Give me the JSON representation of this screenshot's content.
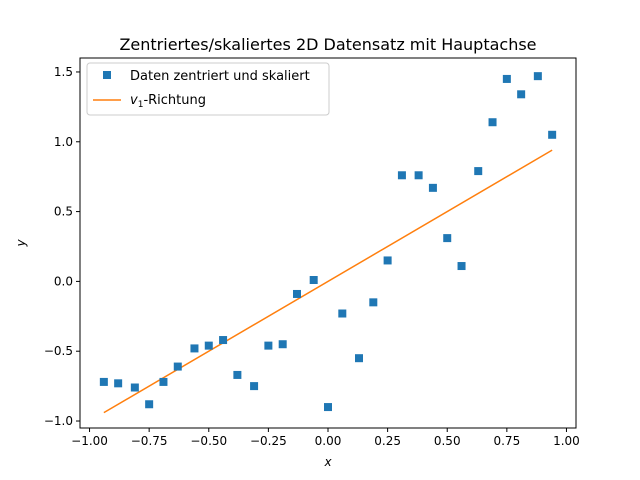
{
  "chart_data": {
    "type": "scatter",
    "title": "Zentriertes/skaliertes 2D Datensatz mit Hauptachse",
    "xlabel": "x",
    "ylabel": "y",
    "xlim": [
      -1.04,
      1.04
    ],
    "ylim": [
      -1.05,
      1.6
    ],
    "xticks": [
      -1.0,
      -0.75,
      -0.5,
      -0.25,
      0.0,
      0.25,
      0.5,
      0.75,
      1.0
    ],
    "xtick_labels": [
      "−1.00",
      "−0.75",
      "−0.50",
      "−0.25",
      "0.00",
      "0.25",
      "0.50",
      "0.75",
      "1.00"
    ],
    "yticks": [
      -1.0,
      -0.5,
      0.0,
      0.5,
      1.0,
      1.5
    ],
    "ytick_labels": [
      "−1.0",
      "−0.5",
      "0.0",
      "0.5",
      "1.0",
      "1.5"
    ],
    "grid": false,
    "legend_position": "top-left",
    "series": [
      {
        "name": "Daten zentriert und skaliert",
        "kind": "scatter",
        "marker": "square",
        "color": "#1f77b4",
        "x": [
          -0.94,
          -0.88,
          -0.81,
          -0.75,
          -0.69,
          -0.63,
          -0.56,
          -0.5,
          -0.44,
          -0.38,
          -0.31,
          -0.25,
          -0.19,
          -0.13,
          -0.06,
          0.0,
          0.06,
          0.13,
          0.19,
          0.25,
          0.31,
          0.38,
          0.44,
          0.5,
          0.56,
          0.63,
          0.69,
          0.75,
          0.81,
          0.88,
          0.94
        ],
        "y": [
          -0.72,
          -0.73,
          -0.76,
          -0.88,
          -0.72,
          -0.61,
          -0.48,
          -0.46,
          -0.42,
          -0.67,
          -0.75,
          -0.46,
          -0.45,
          -0.09,
          0.01,
          -0.9,
          -0.23,
          -0.55,
          -0.15,
          0.15,
          0.76,
          0.76,
          0.67,
          0.31,
          0.11,
          0.79,
          1.14,
          1.45,
          1.34,
          1.47,
          1.05
        ]
      },
      {
        "name": "-Richtung",
        "name_prefix": "v",
        "name_subscript": "1",
        "kind": "line",
        "color": "#ff7f0e",
        "x": [
          -0.94,
          0.94
        ],
        "y": [
          -0.94,
          0.94
        ]
      }
    ]
  }
}
